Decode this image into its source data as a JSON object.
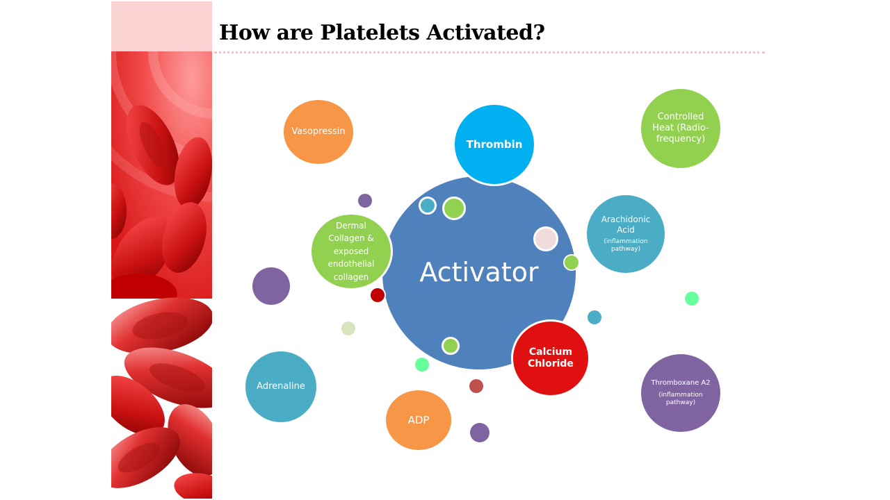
{
  "title": "How are Platelets Activated?",
  "diagram": {
    "center": {
      "label": "Activator",
      "color": "#4f81bd"
    },
    "nodes": [
      {
        "id": "vasopressin",
        "label": "Vasopressin",
        "color": "#f79646"
      },
      {
        "id": "thrombin",
        "label": "Thrombin",
        "color": "#00b0f0"
      },
      {
        "id": "controlled-heat",
        "label": "Controlled Heat (Radio-frequency)",
        "color": "#92d050"
      },
      {
        "id": "arachidonic-acid",
        "label": "Arachidonic Acid",
        "sublabel": "(inflammation pathway)",
        "color": "#4bacc6"
      },
      {
        "id": "dermal-collagen",
        "label": "Dermal Collagen & exposed endothelial collagen",
        "color": "#92d050"
      },
      {
        "id": "calcium-chloride",
        "label": "Calcium Chloride",
        "color": "#e01010"
      },
      {
        "id": "adrenaline",
        "label": "Adrenaline",
        "color": "#4bacc6"
      },
      {
        "id": "adp",
        "label": "ADP",
        "color": "#f79646"
      },
      {
        "id": "thromboxane-a2",
        "label": "Thromboxane A2",
        "sublabel": "(inflammation pathway)",
        "color": "#8064a2"
      }
    ],
    "colors": {
      "purple": "#8064a2",
      "teal": "#4bacc6",
      "green": "#92d050",
      "pink": "#f2dcdb",
      "red": "#c00000",
      "mint": "#66ff99",
      "pale": "#d7e4bd",
      "darkred": "#c0504d"
    }
  }
}
